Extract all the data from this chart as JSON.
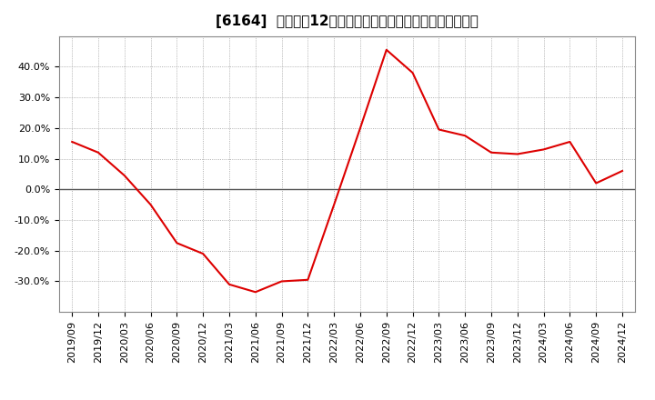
{
  "title": "[6164]  売上高の12か月移動合計の対前年同期増減率の推移",
  "dates": [
    "2019/09",
    "2019/12",
    "2020/03",
    "2020/06",
    "2020/09",
    "2020/12",
    "2021/03",
    "2021/06",
    "2021/09",
    "2021/12",
    "2022/03",
    "2022/06",
    "2022/09",
    "2022/12",
    "2023/03",
    "2023/06",
    "2023/09",
    "2023/12",
    "2024/03",
    "2024/06",
    "2024/09",
    "2024/12"
  ],
  "values": [
    0.155,
    0.12,
    0.045,
    -0.05,
    -0.175,
    -0.21,
    -0.31,
    -0.335,
    -0.3,
    -0.295,
    -0.05,
    0.2,
    0.455,
    0.38,
    0.195,
    0.175,
    0.12,
    0.115,
    0.13,
    0.155,
    0.02,
    0.06
  ],
  "line_color": "#dd0000",
  "bg_color": "#ffffff",
  "plot_bg_color": "#ffffff",
  "grid_color": "#999999",
  "zero_line_color": "#555555",
  "ylim": [
    -0.4,
    0.5
  ],
  "yticks": [
    -0.3,
    -0.2,
    -0.1,
    0.0,
    0.1,
    0.2,
    0.3,
    0.4
  ],
  "title_fontsize": 11,
  "tick_fontsize": 8
}
